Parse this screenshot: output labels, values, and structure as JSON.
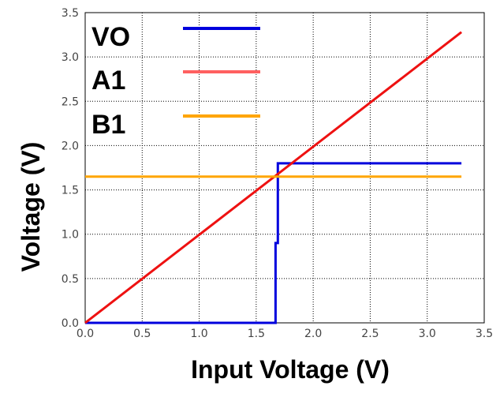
{
  "chart_data": {
    "type": "line",
    "xlabel": "Input Voltage  (V)",
    "ylabel": "Voltage  (V)",
    "xlim": [
      0,
      3.5
    ],
    "ylim": [
      0,
      3.5
    ],
    "x_ticks": [
      "0.0",
      "0.5",
      "1.0",
      "1.5",
      "2.0",
      "2.5",
      "3.0",
      "3.5"
    ],
    "y_ticks": [
      "0.0",
      "0.5",
      "1.0",
      "1.5",
      "2.0",
      "2.5",
      "3.0",
      "3.5"
    ],
    "grid": true,
    "legend_position": "top-left",
    "series": [
      {
        "name": "VO",
        "color": "#0000dd",
        "x": [
          0.0,
          1.67,
          1.67,
          1.69,
          1.69,
          3.3
        ],
        "y": [
          0.0,
          0.0,
          0.9,
          0.9,
          1.8,
          1.8
        ]
      },
      {
        "name": "A1",
        "color": "#ee1111",
        "legend_color": "#ff6060",
        "x": [
          0.0,
          3.3
        ],
        "y": [
          0.0,
          3.28
        ]
      },
      {
        "name": "B1",
        "color": "#ffa500",
        "x": [
          0.0,
          3.3
        ],
        "y": [
          1.65,
          1.65
        ]
      }
    ]
  }
}
